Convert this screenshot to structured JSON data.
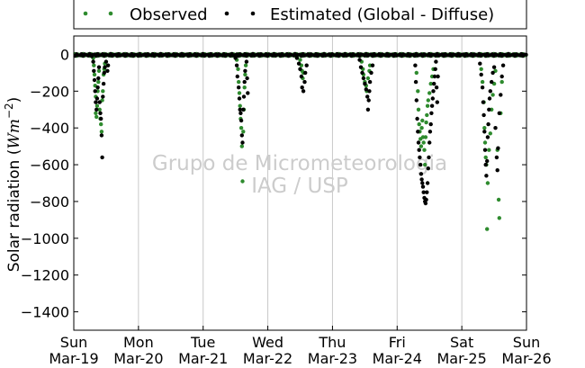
{
  "chart_data": {
    "type": "scatter",
    "ylabel_main": "Solar radiation (",
    "ylabel_math": "Wm",
    "ylabel_exp": "−2",
    "ylabel_close": ")",
    "ylim": [
      -1500,
      100
    ],
    "yticks": [
      0,
      -200,
      -400,
      -600,
      -800,
      -1000,
      -1200,
      -1400
    ],
    "ytick_labels": [
      "0",
      "−200",
      "−400",
      "−600",
      "−800",
      "−1000",
      "−1200",
      "−1400"
    ],
    "xlim": [
      0,
      7
    ],
    "xticks": [
      0,
      1,
      2,
      3,
      4,
      5,
      6,
      7
    ],
    "xtick_day_labels": [
      "Sun",
      "Mon",
      "Tue",
      "Wed",
      "Thu",
      "Fri",
      "Sat",
      "Sun"
    ],
    "xtick_date_labels": [
      "Mar-19",
      "Mar-20",
      "Mar-21",
      "Mar-22",
      "Mar-23",
      "Mar-24",
      "Mar-25",
      "Mar-26"
    ],
    "grid": "x",
    "legend_placement": "top-center",
    "watermark": [
      "Grupo de Micrometeorologia",
      "IAG / USP"
    ],
    "colors": {
      "observed": "#2e8b2e",
      "estimated": "#000000",
      "grid": "#c8c8c8"
    },
    "series": [
      {
        "name": "Observed",
        "color": "#2e8b2e",
        "points": [
          [
            0.3,
            -20
          ],
          [
            0.31,
            -60
          ],
          [
            0.32,
            -110
          ],
          [
            0.33,
            -170
          ],
          [
            0.34,
            -230
          ],
          [
            0.34,
            -320
          ],
          [
            0.35,
            -340
          ],
          [
            0.36,
            -280
          ],
          [
            0.37,
            -200
          ],
          [
            0.38,
            -150
          ],
          [
            0.39,
            -90
          ],
          [
            0.4,
            -300
          ],
          [
            0.41,
            -350
          ],
          [
            0.42,
            -380
          ],
          [
            0.43,
            -420
          ],
          [
            0.44,
            -250
          ],
          [
            0.45,
            -200
          ],
          [
            0.46,
            -110
          ],
          [
            0.47,
            -80
          ],
          [
            0.48,
            -50
          ],
          [
            2.52,
            -30
          ],
          [
            2.54,
            -80
          ],
          [
            2.55,
            -150
          ],
          [
            2.56,
            -210
          ],
          [
            2.57,
            -280
          ],
          [
            2.58,
            -350
          ],
          [
            2.59,
            -400
          ],
          [
            2.6,
            -500
          ],
          [
            2.61,
            -690
          ],
          [
            2.62,
            -420
          ],
          [
            2.63,
            -300
          ],
          [
            2.64,
            -180
          ],
          [
            2.65,
            -110
          ],
          [
            2.66,
            -60
          ],
          [
            3.5,
            -30
          ],
          [
            3.52,
            -60
          ],
          [
            3.53,
            -90
          ],
          [
            3.54,
            -130
          ],
          [
            3.55,
            -100
          ],
          [
            4.45,
            -40
          ],
          [
            4.47,
            -80
          ],
          [
            4.48,
            -110
          ],
          [
            4.5,
            -150
          ],
          [
            4.52,
            -170
          ],
          [
            4.53,
            -200
          ],
          [
            4.55,
            -130
          ],
          [
            4.57,
            -90
          ],
          [
            4.58,
            -60
          ],
          [
            5.3,
            -100
          ],
          [
            5.32,
            -200
          ],
          [
            5.33,
            -300
          ],
          [
            5.34,
            -380
          ],
          [
            5.35,
            -420
          ],
          [
            5.36,
            -460
          ],
          [
            5.37,
            -500
          ],
          [
            5.38,
            -400
          ],
          [
            5.39,
            -360
          ],
          [
            5.4,
            -450
          ],
          [
            5.41,
            -480
          ],
          [
            5.42,
            -520
          ],
          [
            5.43,
            -600
          ],
          [
            5.44,
            -450
          ],
          [
            5.45,
            -370
          ],
          [
            5.46,
            -330
          ],
          [
            5.47,
            -280
          ],
          [
            5.48,
            -250
          ],
          [
            5.5,
            -210
          ],
          [
            5.52,
            -160
          ],
          [
            5.54,
            -120
          ],
          [
            5.56,
            -80
          ],
          [
            6.3,
            -80
          ],
          [
            6.32,
            -150
          ],
          [
            6.34,
            -260
          ],
          [
            6.35,
            -400
          ],
          [
            6.36,
            -480
          ],
          [
            6.37,
            -560
          ],
          [
            6.38,
            -600
          ],
          [
            6.39,
            -950
          ],
          [
            6.4,
            -700
          ],
          [
            6.42,
            -520
          ],
          [
            6.44,
            -430
          ],
          [
            6.46,
            -300
          ],
          [
            6.48,
            -220
          ],
          [
            6.5,
            -160
          ],
          [
            6.52,
            -90
          ],
          [
            6.55,
            -520
          ],
          [
            6.57,
            -790
          ],
          [
            6.58,
            -890
          ],
          [
            6.6,
            -320
          ],
          [
            6.62,
            -150
          ]
        ]
      },
      {
        "name": "Estimated (Global - Diffuse)",
        "color": "#000000",
        "points": [
          [
            0.28,
            -10
          ],
          [
            0.3,
            -40
          ],
          [
            0.31,
            -90
          ],
          [
            0.32,
            -140
          ],
          [
            0.33,
            -200
          ],
          [
            0.34,
            -260
          ],
          [
            0.35,
            -300
          ],
          [
            0.36,
            -240
          ],
          [
            0.37,
            -180
          ],
          [
            0.38,
            -130
          ],
          [
            0.39,
            -70
          ],
          [
            0.4,
            -260
          ],
          [
            0.41,
            -320
          ],
          [
            0.42,
            -350
          ],
          [
            0.43,
            -440
          ],
          [
            0.44,
            -560
          ],
          [
            0.45,
            -230
          ],
          [
            0.46,
            -160
          ],
          [
            0.47,
            -100
          ],
          [
            0.48,
            -70
          ],
          [
            0.5,
            -40
          ],
          [
            0.52,
            -90
          ],
          [
            0.53,
            -60
          ],
          [
            2.5,
            -20
          ],
          [
            2.52,
            -60
          ],
          [
            2.53,
            -120
          ],
          [
            2.55,
            -180
          ],
          [
            2.56,
            -240
          ],
          [
            2.57,
            -300
          ],
          [
            2.58,
            -320
          ],
          [
            2.59,
            -360
          ],
          [
            2.6,
            -440
          ],
          [
            2.61,
            -480
          ],
          [
            2.62,
            -300
          ],
          [
            2.63,
            -230
          ],
          [
            2.64,
            -150
          ],
          [
            2.65,
            -90
          ],
          [
            2.67,
            -40
          ],
          [
            2.68,
            -130
          ],
          [
            2.69,
            -210
          ],
          [
            3.45,
            -20
          ],
          [
            3.48,
            -50
          ],
          [
            3.5,
            -80
          ],
          [
            3.52,
            -120
          ],
          [
            3.53,
            -180
          ],
          [
            3.55,
            -200
          ],
          [
            3.57,
            -150
          ],
          [
            3.58,
            -100
          ],
          [
            3.6,
            -60
          ],
          [
            4.42,
            -30
          ],
          [
            4.44,
            -70
          ],
          [
            4.46,
            -100
          ],
          [
            4.48,
            -130
          ],
          [
            4.5,
            -160
          ],
          [
            4.52,
            -190
          ],
          [
            4.54,
            -230
          ],
          [
            4.55,
            -300
          ],
          [
            4.56,
            -250
          ],
          [
            4.57,
            -200
          ],
          [
            4.58,
            -150
          ],
          [
            4.6,
            -100
          ],
          [
            4.62,
            -60
          ],
          [
            5.28,
            -60
          ],
          [
            5.29,
            -150
          ],
          [
            5.3,
            -250
          ],
          [
            5.31,
            -350
          ],
          [
            5.32,
            -420
          ],
          [
            5.33,
            -480
          ],
          [
            5.34,
            -520
          ],
          [
            5.35,
            -560
          ],
          [
            5.36,
            -600
          ],
          [
            5.37,
            -650
          ],
          [
            5.38,
            -680
          ],
          [
            5.39,
            -700
          ],
          [
            5.4,
            -720
          ],
          [
            5.41,
            -750
          ],
          [
            5.42,
            -780
          ],
          [
            5.43,
            -800
          ],
          [
            5.44,
            -810
          ],
          [
            5.45,
            -790
          ],
          [
            5.46,
            -750
          ],
          [
            5.47,
            -700
          ],
          [
            5.48,
            -620
          ],
          [
            5.49,
            -560
          ],
          [
            5.5,
            -480
          ],
          [
            5.51,
            -420
          ],
          [
            5.52,
            -380
          ],
          [
            5.53,
            -320
          ],
          [
            5.54,
            -280
          ],
          [
            5.55,
            -240
          ],
          [
            5.56,
            -200
          ],
          [
            5.57,
            -160
          ],
          [
            5.58,
            -120
          ],
          [
            5.59,
            -80
          ],
          [
            5.6,
            -40
          ],
          [
            5.61,
            -180
          ],
          [
            5.62,
            -260
          ],
          [
            5.63,
            -120
          ],
          [
            6.28,
            -50
          ],
          [
            6.3,
            -110
          ],
          [
            6.32,
            -180
          ],
          [
            6.33,
            -260
          ],
          [
            6.34,
            -330
          ],
          [
            6.35,
            -420
          ],
          [
            6.36,
            -520
          ],
          [
            6.37,
            -600
          ],
          [
            6.38,
            -660
          ],
          [
            6.39,
            -580
          ],
          [
            6.4,
            -450
          ],
          [
            6.41,
            -380
          ],
          [
            6.42,
            -300
          ],
          [
            6.43,
            -240
          ],
          [
            6.44,
            -200
          ],
          [
            6.46,
            -150
          ],
          [
            6.48,
            -100
          ],
          [
            6.5,
            -70
          ],
          [
            6.52,
            -400
          ],
          [
            6.54,
            -560
          ],
          [
            6.55,
            -630
          ],
          [
            6.56,
            -510
          ],
          [
            6.58,
            -320
          ],
          [
            6.6,
            -220
          ],
          [
            6.62,
            -120
          ],
          [
            6.64,
            -60
          ]
        ]
      }
    ]
  }
}
